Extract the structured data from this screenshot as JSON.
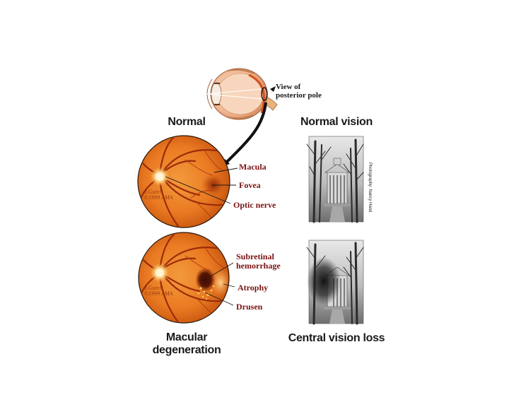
{
  "headings": {
    "normal": "Normal",
    "normal_vision": "Normal vision",
    "macular_line1": "Macular",
    "macular_line2": "degeneration",
    "central_vision_loss": "Central vision loss"
  },
  "eye": {
    "view_label_line1": "View of",
    "view_label_line2": "posterior pole"
  },
  "normal_labels": {
    "macula": "Macula",
    "fovea": "Fovea",
    "optic_nerve": "Optic nerve"
  },
  "degeneration_labels": {
    "subretinal_line1": "Subretinal",
    "subretinal_line2": "hemorrhage",
    "atrophy": "Atrophy",
    "drusen": "Drusen"
  },
  "signatures": {
    "top_line1": "J.Gurch",
    "top_line2": "©1999 AMA",
    "bottom_line1": "J.Gurch",
    "bottom_line2": "©1999 AMA"
  },
  "photo_credit": "Photography: Nancy Hand",
  "colors": {
    "heading": "#1a1a1a",
    "label": "#7a1212",
    "retina": "#e8741e",
    "retina_dark": "#c9500c"
  }
}
